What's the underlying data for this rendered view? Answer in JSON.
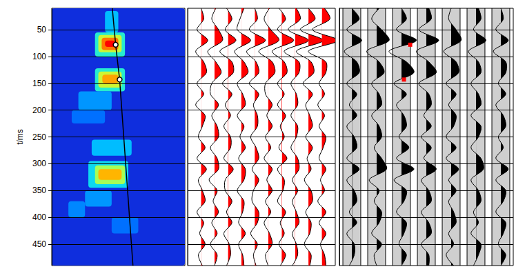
{
  "chart_data": [
    {
      "type": "heatmap",
      "ylabel": "t/ms",
      "xlim": [
        0,
        20
      ],
      "ylim": [
        10,
        490
      ],
      "yticks": [
        50,
        100,
        150,
        200,
        250,
        300,
        350,
        400,
        450
      ],
      "tick_labels": "y",
      "grid": true,
      "zlim": [
        0,
        1
      ],
      "cells": [
        [
          0,
          20,
          10,
          490,
          0.12
        ],
        [
          8,
          10,
          15,
          55,
          0.35
        ],
        [
          6.5,
          11,
          55,
          100,
          0.45
        ],
        [
          7,
          10.5,
          60,
          92,
          0.65
        ],
        [
          7.5,
          10,
          65,
          88,
          0.85
        ],
        [
          8,
          9.5,
          70,
          82,
          1.0
        ],
        [
          6.5,
          11,
          122,
          165,
          0.45
        ],
        [
          7,
          10.5,
          128,
          158,
          0.65
        ],
        [
          7.6,
          10,
          134,
          150,
          0.8
        ],
        [
          4,
          9,
          165,
          200,
          0.3
        ],
        [
          3,
          8,
          200,
          225,
          0.25
        ],
        [
          6,
          12,
          255,
          285,
          0.35
        ],
        [
          5.5,
          11.5,
          295,
          345,
          0.4
        ],
        [
          6.5,
          11,
          303,
          338,
          0.6
        ],
        [
          7,
          10.5,
          310,
          330,
          0.78
        ],
        [
          5,
          9,
          350,
          380,
          0.3
        ],
        [
          2.5,
          5,
          370,
          400,
          0.28
        ],
        [
          9,
          13,
          400,
          430,
          0.25
        ]
      ],
      "pick_line": {
        "x": [
          9.1,
          9.6,
          10.2,
          12.2
        ],
        "t": [
          10,
          78,
          143,
          490
        ],
        "color": "#000000"
      },
      "picks": {
        "x": [
          9.6,
          10.2
        ],
        "t": [
          78,
          143
        ]
      }
    },
    {
      "type": "wiggle",
      "xlim": [
        0,
        11
      ],
      "ylim": [
        10,
        490
      ],
      "yticks": [
        50,
        100,
        150,
        200,
        250,
        300,
        350,
        400,
        450
      ],
      "tick_labels": false,
      "grid": true,
      "color": "#ff0000",
      "t": [
        10,
        30,
        50,
        70,
        90,
        110,
        130,
        150,
        170,
        190,
        210,
        230,
        250,
        270,
        290,
        310,
        330,
        350,
        370,
        390,
        410,
        430,
        450,
        470,
        490
      ],
      "traces": [
        {
          "offset": 1,
          "values": [
            0,
            0.2,
            -0.3,
            0.5,
            -0.4,
            0.2,
            0.4,
            -0.3,
            0.2,
            -0.4,
            0.3,
            0.1,
            -0.2,
            0.3,
            -0.3,
            0.4,
            -0.2,
            0.1,
            0.3,
            -0.3,
            0.2,
            -0.1,
            0.3,
            -0.2,
            0.1
          ]
        },
        {
          "offset": 2,
          "values": [
            0.1,
            -0.2,
            0.3,
            0.6,
            -0.5,
            0.1,
            0.5,
            -0.2,
            -0.3,
            0.3,
            -0.2,
            0.2,
            0.3,
            -0.3,
            0.2,
            0.3,
            -0.4,
            0.2,
            -0.1,
            0.3,
            -0.2,
            0.2,
            -0.3,
            0.2,
            0
          ]
        },
        {
          "offset": 3,
          "values": [
            -0.1,
            0.3,
            -0.2,
            0.6,
            -0.6,
            0.3,
            0.4,
            -0.4,
            0.3,
            -0.2,
            0.2,
            -0.3,
            0.2,
            0.2,
            -0.3,
            0.4,
            -0.2,
            -0.2,
            0.3,
            -0.1,
            0.3,
            -0.3,
            0.1,
            0.2,
            -0.1
          ]
        },
        {
          "offset": 4,
          "values": [
            0.2,
            -0.1,
            -0.3,
            0.7,
            -0.5,
            0.2,
            0.5,
            -0.3,
            0.1,
            0.3,
            -0.3,
            0.2,
            -0.1,
            0.3,
            -0.2,
            0.3,
            0.2,
            -0.3,
            0.2,
            0.1,
            -0.2,
            0.3,
            -0.2,
            0.1,
            0.2
          ]
        },
        {
          "offset": 5,
          "values": [
            0,
            0.2,
            -0.4,
            0.8,
            -0.6,
            0.1,
            0.3,
            -0.4,
            0.3,
            -0.1,
            0.2,
            0.2,
            -0.3,
            0.1,
            0.3,
            -0.2,
            0.3,
            -0.1,
            -0.2,
            0.3,
            0.2,
            -0.3,
            0.2,
            -0.1,
            0.1
          ]
        },
        {
          "offset": 6,
          "values": [
            0.1,
            -0.3,
            0.2,
            0.8,
            -0.7,
            0.3,
            0.5,
            -0.2,
            -0.2,
            0.3,
            -0.1,
            0.3,
            -0.2,
            0.2,
            -0.3,
            0.3,
            -0.1,
            0.3,
            -0.2,
            0.2,
            -0.3,
            0.1,
            0.3,
            -0.2,
            0
          ]
        },
        {
          "offset": 7,
          "values": [
            -0.2,
            0.3,
            -0.3,
            0.9,
            -0.7,
            0.2,
            0.4,
            -0.3,
            0.2,
            -0.3,
            0.3,
            -0.1,
            0.2,
            -0.2,
            0.4,
            -0.3,
            0.2,
            0.1,
            -0.3,
            0.3,
            -0.1,
            0.2,
            -0.2,
            0.3,
            -0.1
          ]
        },
        {
          "offset": 8,
          "values": [
            0.1,
            0.4,
            -0.5,
            1.0,
            -0.8,
            0.3,
            0.3,
            -0.3,
            0.1,
            0.2,
            -0.3,
            0.2,
            0.1,
            -0.3,
            0.2,
            0.3,
            -0.2,
            0.2,
            -0.2,
            0.1,
            0.3,
            -0.2,
            0.1,
            0.2,
            -0.2
          ]
        },
        {
          "offset": 9,
          "values": [
            0,
            0.5,
            -0.6,
            1.1,
            -0.9,
            0.2,
            0.4,
            -0.4,
            0.3,
            -0.2,
            0.1,
            0.3,
            -0.2,
            0.3,
            -0.1,
            0.2,
            -0.3,
            0.2,
            0.3,
            -0.2,
            0.2,
            0.1,
            -0.3,
            0.2,
            0.1
          ]
        },
        {
          "offset": 10,
          "values": [
            0.2,
            0.6,
            -0.7,
            1.2,
            -1.0,
            0.3,
            0.3,
            -0.2,
            0.2,
            -0.3,
            0.2,
            -0.2,
            0.3,
            0.1,
            -0.2,
            0.3,
            -0.1,
            0.2,
            -0.3,
            0.3,
            -0.2,
            0.3,
            -0.1,
            0.2,
            0.3
          ]
        }
      ]
    },
    {
      "type": "wiggle",
      "xlim": [
        0.5,
        7.5
      ],
      "ylim": [
        10,
        490
      ],
      "yticks": [
        50,
        100,
        150,
        200,
        250,
        300,
        350,
        400,
        450
      ],
      "tick_labels": false,
      "grid": true,
      "color": "#000000",
      "t": [
        10,
        30,
        50,
        70,
        90,
        110,
        130,
        150,
        170,
        190,
        210,
        230,
        250,
        270,
        290,
        310,
        330,
        350,
        370,
        390,
        410,
        430,
        450,
        470,
        490
      ],
      "traces": [
        {
          "offset": 1,
          "values": [
            0,
            0.3,
            -0.2,
            0.4,
            -0.3,
            0.2,
            0.3,
            -0.2,
            0.2,
            -0.1,
            0.2,
            -0.2,
            0.1,
            0.2,
            -0.2,
            0.3,
            -0.2,
            0.1,
            0.2,
            -0.1,
            0.2,
            -0.2,
            0.1,
            0.1,
            -0.1
          ]
        },
        {
          "offset": 2,
          "values": [
            0.1,
            -0.2,
            0.2,
            0.5,
            -0.4,
            0.1,
            0.3,
            -0.2,
            0.1,
            0.2,
            -0.2,
            0.1,
            0.2,
            -0.1,
            0.2,
            0.4,
            -0.3,
            0.1,
            -0.1,
            0.2,
            0.1,
            -0.2,
            0.2,
            -0.1,
            0
          ]
        },
        {
          "offset": 3,
          "values": [
            0,
            0.2,
            -0.2,
            0.6,
            -0.5,
            0.2,
            0.5,
            -0.3,
            0.2,
            -0.2,
            0.1,
            0.2,
            -0.1,
            0.3,
            -0.2,
            0.5,
            -0.3,
            0.2,
            0.1,
            -0.2,
            0.2,
            0.1,
            -0.1,
            0.2,
            0
          ]
        },
        {
          "offset": 4,
          "values": [
            0.1,
            0.2,
            -0.3,
            0.5,
            -0.4,
            0.1,
            0.4,
            -0.3,
            0.1,
            0.2,
            -0.1,
            0.2,
            -0.2,
            0.2,
            -0.1,
            0.4,
            -0.2,
            0.1,
            0.2,
            -0.2,
            0.1,
            0.2,
            -0.2,
            0.1,
            0.1
          ]
        },
        {
          "offset": 5,
          "values": [
            0,
            -0.1,
            0.2,
            0.4,
            -0.3,
            0.2,
            0.3,
            -0.2,
            0.2,
            -0.1,
            0.2,
            0.1,
            -0.2,
            0.2,
            -0.2,
            0.3,
            -0.1,
            0.2,
            -0.1,
            0.1,
            0.2,
            -0.1,
            0.1,
            -0.2,
            0.1
          ]
        },
        {
          "offset": 6,
          "values": [
            0.1,
            0.2,
            -0.1,
            0.4,
            -0.3,
            0.1,
            0.2,
            -0.2,
            0.1,
            0.2,
            -0.2,
            0.2,
            0.1,
            -0.2,
            0.2,
            0.3,
            -0.2,
            0.1,
            0.2,
            -0.1,
            0.1,
            -0.2,
            0.2,
            0.1,
            -0.1
          ]
        },
        {
          "offset": 7,
          "values": [
            0,
            0.1,
            -0.2,
            0.3,
            -0.3,
            0.2,
            0.2,
            -0.1,
            0.2,
            -0.2,
            0.1,
            0.2,
            -0.1,
            0.1,
            -0.2,
            0.3,
            -0.2,
            0.2,
            0.1,
            -0.2,
            0.2,
            0.1,
            -0.1,
            0.2,
            0
          ]
        }
      ],
      "marks": {
        "x": [
          3.35,
          3.1
        ],
        "t": [
          78,
          143
        ],
        "color": "#ff0000"
      }
    }
  ]
}
